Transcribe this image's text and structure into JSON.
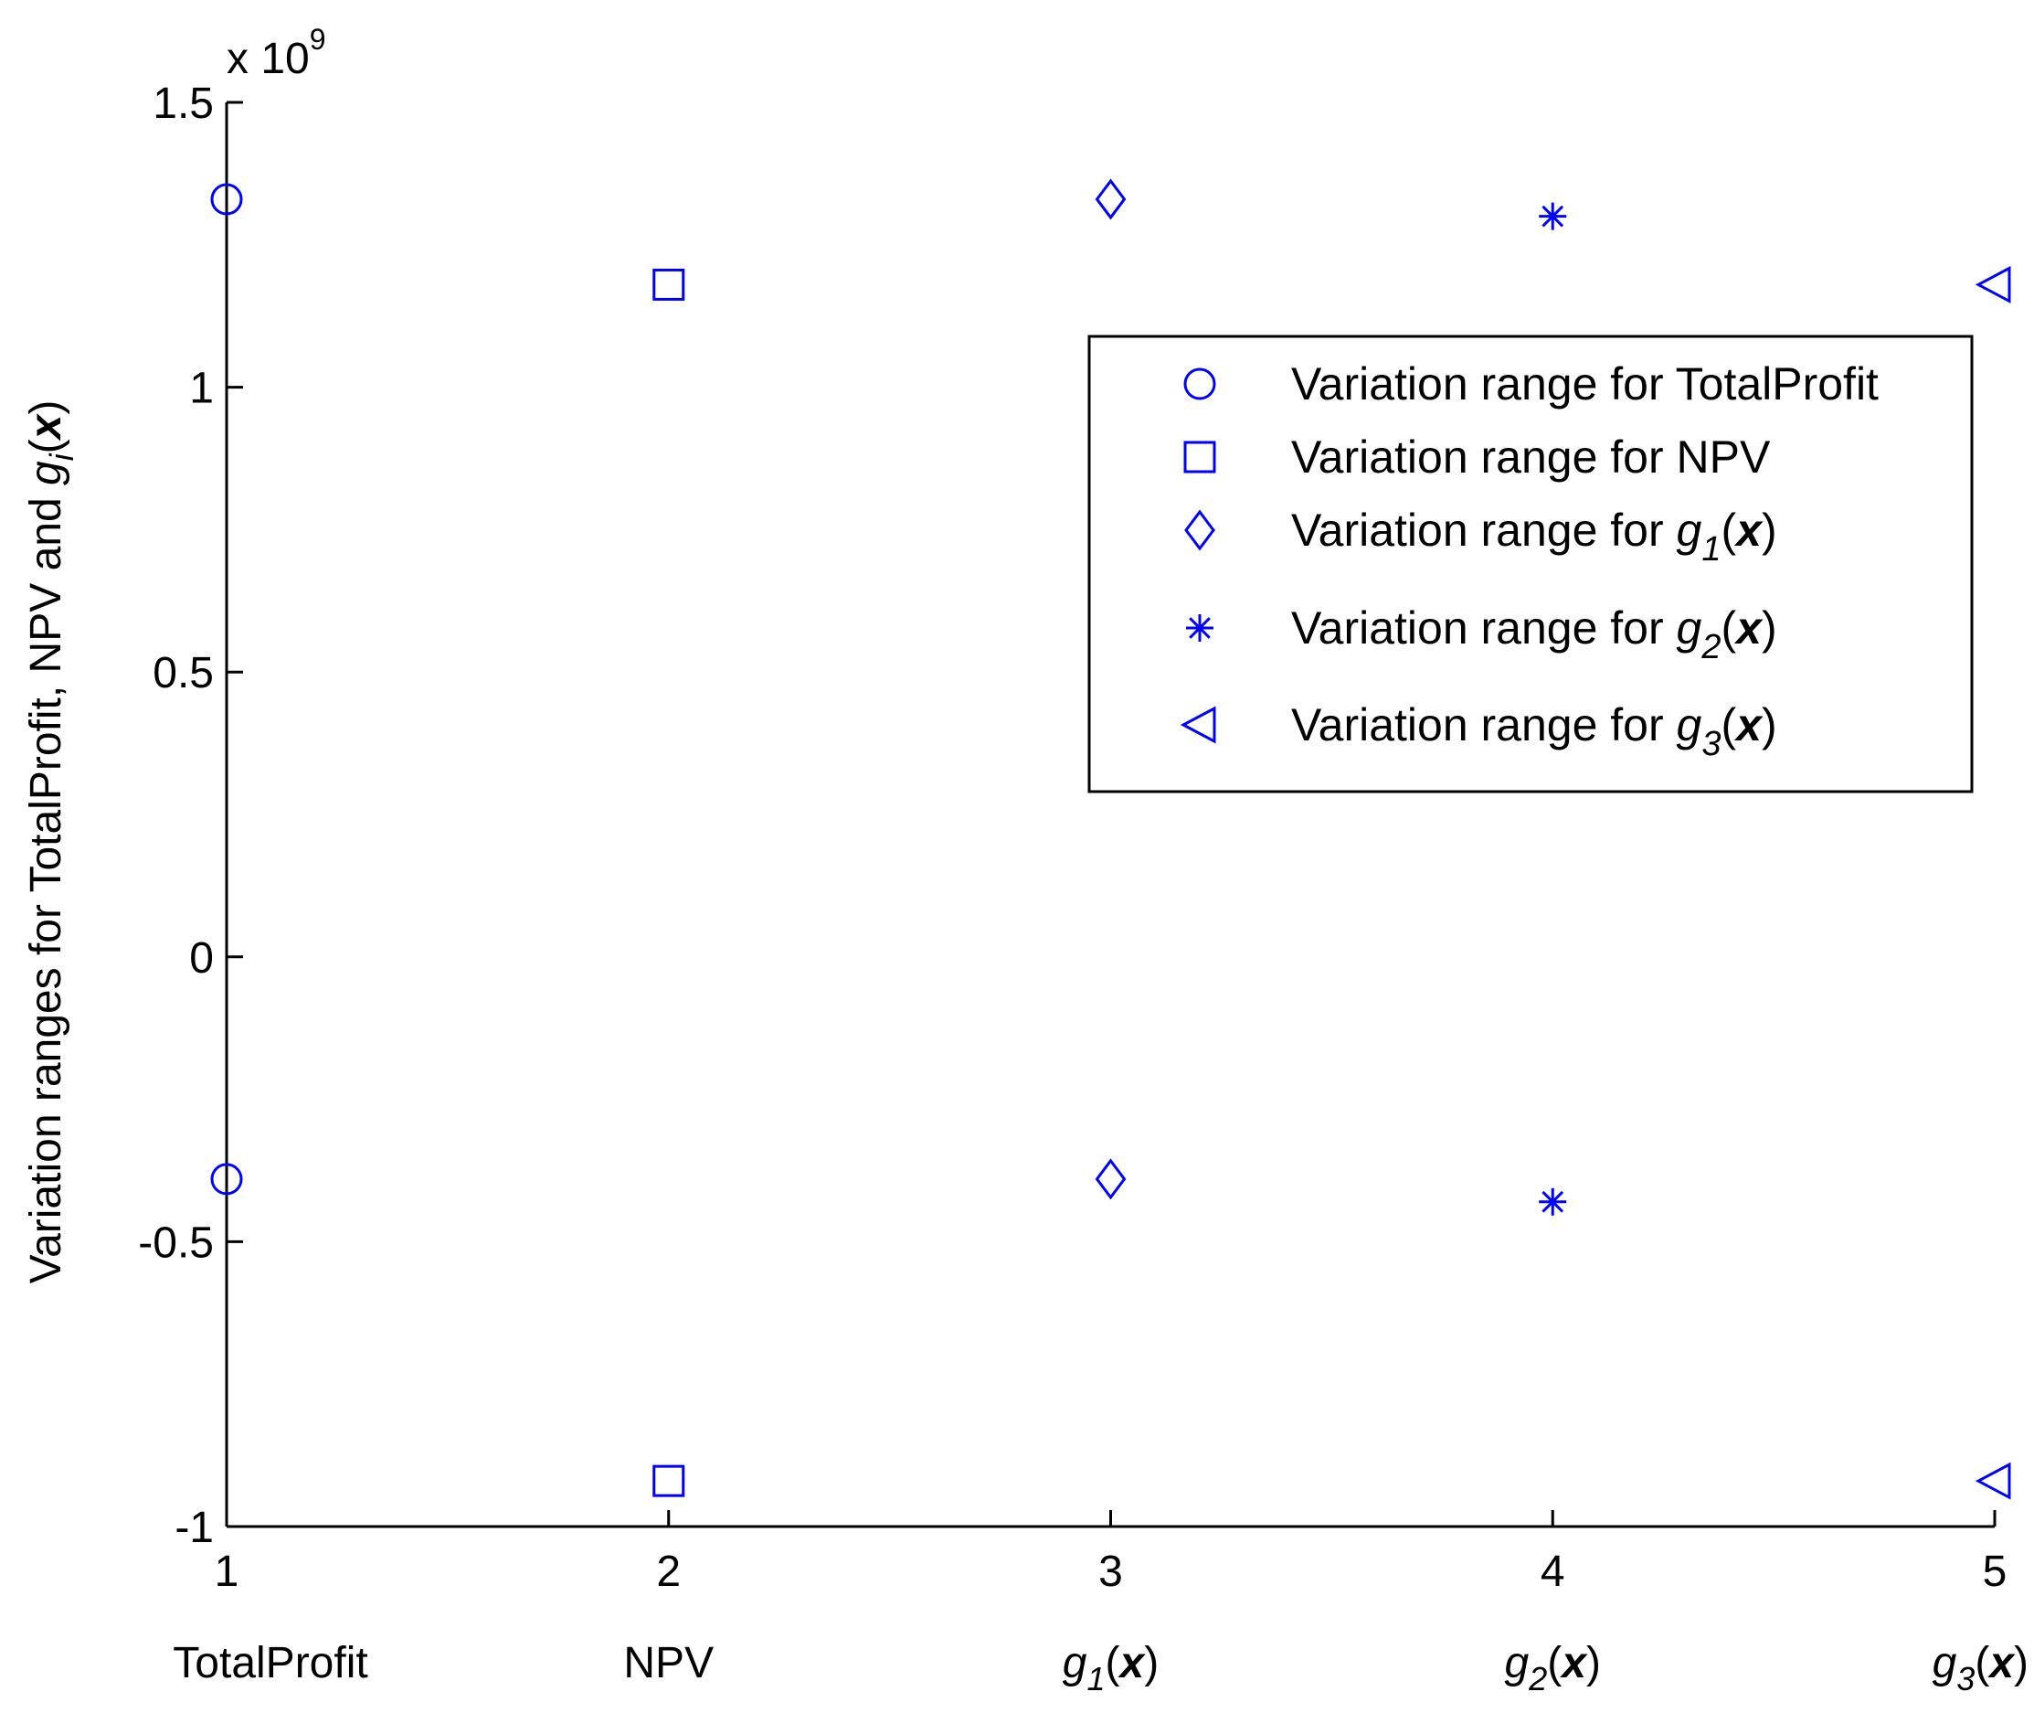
{
  "chart_data": {
    "type": "scatter",
    "title": "",
    "xlabel": "",
    "ylabel": {
      "prefix": "Variation ranges for TotalProfit, NPV and ",
      "func": "g",
      "sub": "i",
      "open": "(",
      "arg": "x",
      "close": ")"
    },
    "xlim": [
      1,
      5
    ],
    "ylim": [
      -1000000000.0,
      1500000000.0
    ],
    "y_exponent_label": {
      "base": "x 10",
      "exp": "9"
    },
    "xticks": [
      1,
      2,
      3,
      4,
      5
    ],
    "xtick_labels": [
      "1",
      "2",
      "3",
      "4",
      "5"
    ],
    "yticks": [
      -1000000000.0,
      -500000000.0,
      0,
      500000000.0,
      1000000000.0,
      1500000000.0
    ],
    "ytick_labels": [
      "-1",
      "-0.5",
      "0",
      "0.5",
      "1",
      "1.5"
    ],
    "category_labels": [
      {
        "plain": "TotalProfit"
      },
      {
        "plain": "NPV"
      },
      {
        "func": "g",
        "sub": "1",
        "open": "(",
        "arg": "x",
        "close": ")"
      },
      {
        "func": "g",
        "sub": "2",
        "open": "(",
        "arg": "x",
        "close": ")"
      },
      {
        "func": "g",
        "sub": "3",
        "open": "(",
        "arg": "x",
        "close": ")"
      }
    ],
    "legend_placement": "upper-right",
    "grid": false,
    "series": [
      {
        "name": "Variation range for TotalProfit",
        "marker": "circle",
        "x": [
          1,
          1
        ],
        "y": [
          1330000000.0,
          -390000000.0
        ]
      },
      {
        "name": "Variation range for NPV",
        "marker": "square",
        "x": [
          2,
          2
        ],
        "y": [
          1180000000.0,
          -920000000.0
        ]
      },
      {
        "name_prefix": "Variation range for ",
        "name_func": "g",
        "name_sub": "1",
        "name_open": "(",
        "name_arg": "x",
        "name_close": ")",
        "marker": "diamond",
        "x": [
          3,
          3
        ],
        "y": [
          1330000000.0,
          -390000000.0
        ]
      },
      {
        "name_prefix": "Variation range for ",
        "name_func": "g",
        "name_sub": "2",
        "name_open": "(",
        "name_arg": "x",
        "name_close": ")",
        "marker": "asterisk",
        "x": [
          4,
          4
        ],
        "y": [
          1300000000.0,
          -430000000.0
        ]
      },
      {
        "name_prefix": "Variation range for ",
        "name_func": "g",
        "name_sub": "3",
        "name_open": "(",
        "name_arg": "x",
        "name_close": ")",
        "marker": "triangle-left",
        "x": [
          5,
          5
        ],
        "y": [
          1180000000.0,
          -920000000.0
        ]
      }
    ],
    "marker_color": "#0000ff"
  }
}
